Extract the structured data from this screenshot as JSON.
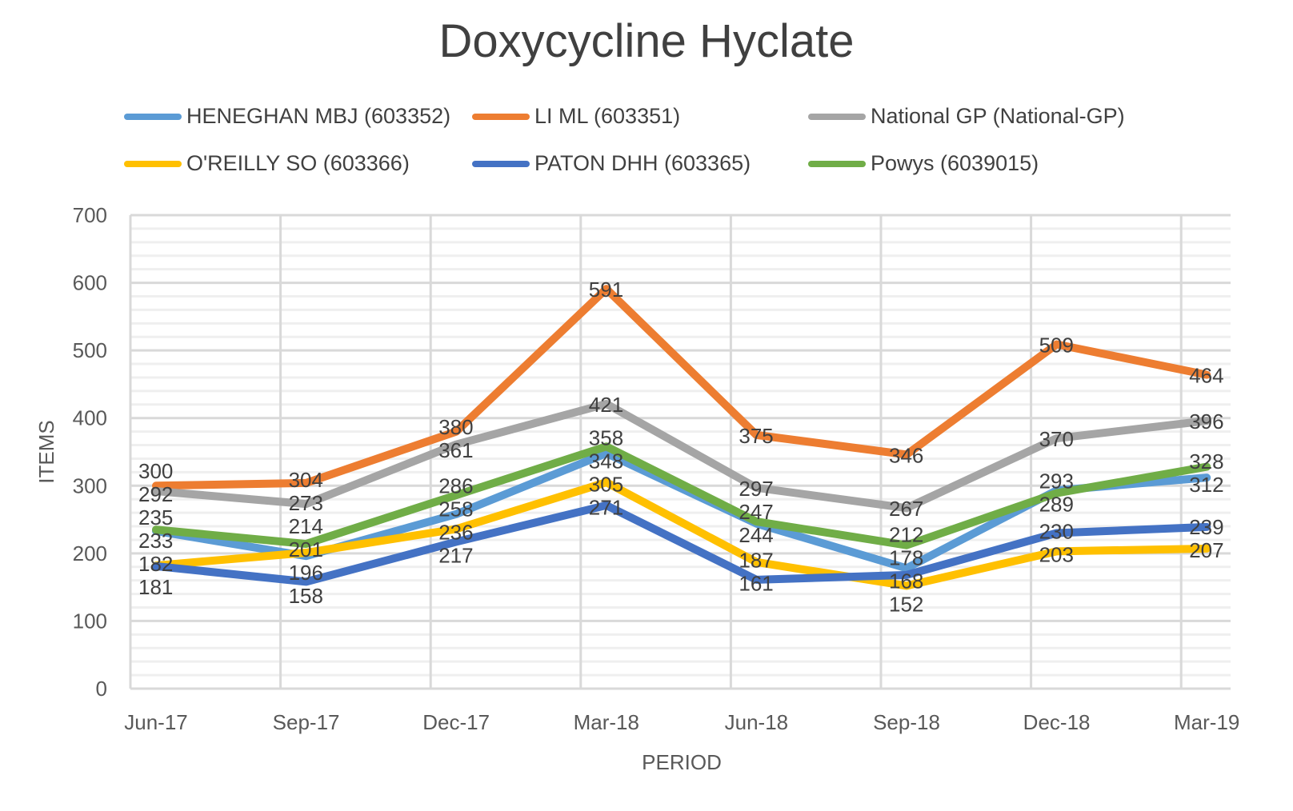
{
  "chart_data": {
    "type": "line",
    "title": "Doxycycline Hyclate",
    "xlabel": "PERIOD",
    "ylabel": "ITEMS",
    "ylim": [
      0,
      700
    ],
    "y_ticks": [
      "0",
      "100",
      "200",
      "300",
      "400",
      "500",
      "600",
      "700"
    ],
    "grid": true,
    "legend": "top",
    "categories": [
      "Jun-17",
      "Sep-17",
      "Dec-17",
      "Mar-18",
      "Jun-18",
      "Sep-18",
      "Dec-18",
      "Mar-19"
    ],
    "series": [
      {
        "name": "HENEGHAN MBJ (603352)",
        "color": "#5b9bd5",
        "values": [
          233,
          196,
          258,
          348,
          244,
          178,
          293,
          312
        ]
      },
      {
        "name": "LI ML (603351)",
        "color": "#ed7d31",
        "values": [
          300,
          304,
          380,
          591,
          375,
          346,
          509,
          464
        ]
      },
      {
        "name": "National GP (National-GP)",
        "color": "#a5a5a5",
        "values": [
          292,
          273,
          361,
          421,
          297,
          267,
          370,
          396
        ]
      },
      {
        "name": "O'REILLY SO (603366)",
        "color": "#ffc000",
        "values": [
          182,
          201,
          236,
          305,
          187,
          152,
          203,
          207
        ]
      },
      {
        "name": "PATON DHH (603365)",
        "color": "#4472c4",
        "values": [
          181,
          158,
          217,
          271,
          161,
          168,
          230,
          239
        ]
      },
      {
        "name": "Powys (6039015)",
        "color": "#70ad47",
        "values": [
          235,
          214,
          286,
          358,
          247,
          212,
          289,
          328
        ]
      }
    ]
  }
}
